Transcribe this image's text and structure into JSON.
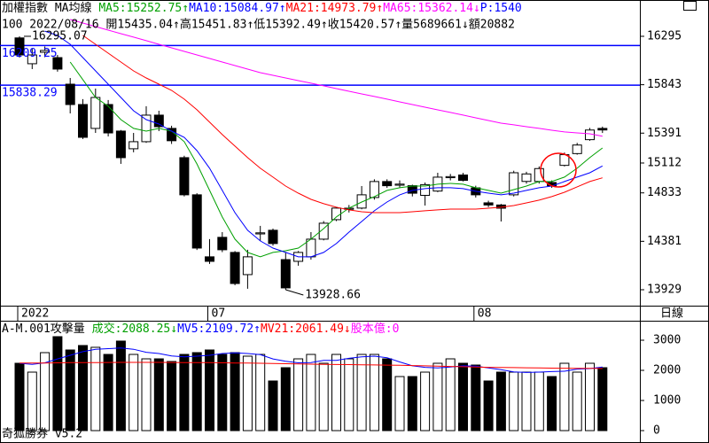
{
  "chart_data": [
    {
      "type": "candlestick",
      "title": "加權指數 MA均線",
      "info": "100 2022/08/16 開15435.04↑高15451.83↑低15392.49↑收15420.57↑量5689661↓額20882",
      "extra_label": "P:1540",
      "extra_color": "#0000ff",
      "period_label": "日線",
      "categories": [
        "2022",
        null,
        null,
        null,
        null,
        null,
        null,
        null,
        null,
        null,
        null,
        null,
        null,
        null,
        null,
        "07",
        null,
        null,
        null,
        null,
        null,
        null,
        null,
        null,
        null,
        null,
        null,
        null,
        null,
        null,
        null,
        null,
        null,
        null,
        null,
        null,
        "08",
        null,
        null,
        null,
        null,
        null,
        null,
        null,
        null,
        null,
        null
      ],
      "open": [
        16280,
        16039,
        16146,
        16096,
        15848,
        15658,
        15435,
        15658,
        15410,
        15245,
        15311,
        15559,
        15435,
        15162,
        14815,
        14236,
        14418,
        14277,
        14070,
        14450,
        14484,
        14210,
        14194,
        14236,
        14401,
        14583,
        14680,
        14691,
        14790,
        14939,
        14905,
        14900,
        14810,
        14850,
        14975,
        15000,
        14880,
        14740,
        14720,
        14815,
        14940,
        14940,
        14930,
        15090,
        15200,
        15330,
        15435.04
      ],
      "high": [
        16295.07,
        16179,
        16200,
        16121,
        15906,
        15708,
        15807,
        15700,
        15420,
        15393,
        15642,
        15600,
        15460,
        15180,
        14830,
        14401,
        14467,
        14290,
        14302,
        14525,
        14500,
        14277,
        14290,
        14467,
        14570,
        14700,
        14720,
        14897,
        14960,
        14960,
        14950,
        14910,
        14930,
        15021,
        15010,
        15020,
        14900,
        14760,
        14730,
        15040,
        15030,
        15080,
        14950,
        15210,
        15300,
        15440,
        15451.83
      ],
      "low": [
        16096,
        15989,
        16100,
        15965,
        15575,
        15336,
        15393,
        15360,
        15104,
        15212,
        15300,
        15410,
        15290,
        14800,
        14300,
        14170,
        14280,
        13971,
        13938,
        14385,
        14340,
        13928.66,
        14153,
        14210,
        14390,
        14570,
        14650,
        14680,
        14770,
        14880,
        14880,
        14800,
        14715,
        14840,
        14950,
        14940,
        14790,
        14700,
        14566,
        14800,
        14920,
        14920,
        14880,
        15080,
        15190,
        15320,
        15392.49
      ],
      "close": [
        16121,
        16121,
        16163,
        15989,
        15658,
        15352,
        15724,
        15393,
        15162,
        15311,
        15559,
        15451,
        15320,
        14815,
        14318,
        14194,
        14302,
        13987,
        14236,
        14460,
        14360,
        13946,
        14277,
        14401,
        14550,
        14691,
        14690,
        14815,
        14939,
        14900,
        14915,
        14830,
        14910,
        14980,
        14985,
        14950,
        14815,
        14720,
        14690,
        15021,
        15010,
        15060,
        14900,
        15190,
        15280,
        15420,
        15420.57
      ],
      "up_color": "#ffffff",
      "down_color": "#000000",
      "series": [
        {
          "name": "MA5:15252.75↑",
          "color": "#00a000",
          "values": [
            null,
            null,
            null,
            null,
            16055,
            15890,
            15724,
            15642,
            15517,
            15435,
            15410,
            15435,
            15410,
            15311,
            15104,
            14856,
            14608,
            14401,
            14277,
            14236,
            14277,
            14293,
            14318,
            14401,
            14500,
            14608,
            14691,
            14748,
            14798,
            14856,
            14881,
            14897,
            14897,
            14914,
            14922,
            14914,
            14881,
            14856,
            14831,
            14864,
            14897,
            14939,
            14939,
            14980,
            15063,
            15162,
            15252.75
          ]
        },
        {
          "name": "MA10:15084.97↑",
          "color": "#0000ff",
          "values": [
            null,
            null,
            16344,
            16303,
            16220,
            16096,
            15972,
            15848,
            15724,
            15600,
            15517,
            15476,
            15410,
            15352,
            15228,
            15063,
            14856,
            14649,
            14484,
            14385,
            14318,
            14277,
            14236,
            14236,
            14277,
            14360,
            14467,
            14566,
            14666,
            14748,
            14815,
            14856,
            14873,
            14881,
            14881,
            14873,
            14848,
            14831,
            14815,
            14831,
            14856,
            14881,
            14897,
            14939,
            14980,
            15021,
            15084.97
          ]
        },
        {
          "name": "MA21:14973.79↑",
          "color": "#ff0000",
          "values": [
            null,
            null,
            null,
            null,
            null,
            16303,
            16220,
            16138,
            16055,
            15972,
            15906,
            15848,
            15790,
            15708,
            15609,
            15493,
            15377,
            15270,
            15162,
            15063,
            14980,
            14897,
            14831,
            14773,
            14732,
            14699,
            14674,
            14657,
            14649,
            14649,
            14649,
            14657,
            14666,
            14674,
            14682,
            14682,
            14682,
            14690,
            14699,
            14715,
            14740,
            14765,
            14798,
            14839,
            14889,
            14939,
            14973.79
          ]
        },
        {
          "name": "MA65:15362.14↓",
          "color": "#ff00ff",
          "values": [
            null,
            null,
            null,
            null,
            16452,
            16419,
            16386,
            16353,
            16320,
            16287,
            16254,
            16220,
            16187,
            16154,
            16121,
            16088,
            16055,
            16022,
            15989,
            15956,
            15931,
            15906,
            15881,
            15857,
            15832,
            15807,
            15782,
            15757,
            15733,
            15708,
            15683,
            15658,
            15633,
            15608,
            15584,
            15559,
            15534,
            15509,
            15484,
            15468,
            15451,
            15435,
            15418,
            15402,
            15393,
            15385,
            15362.14
          ]
        }
      ],
      "ylim": [
        13780,
        16452
      ],
      "yticks": [
        13929,
        14381,
        14833,
        15112,
        15391,
        15843,
        16295
      ],
      "hlines": [
        16209.25,
        15838.29
      ],
      "hline_color": "#0000ff",
      "max_label": 16295.07,
      "min_label": 13928.66
    },
    {
      "type": "bar",
      "title": "A-M.001攻擊量",
      "name": "成交:2088.25↓",
      "name_color": "#00a000",
      "values": [
        2235,
        1941,
        2588,
        3118,
        2676,
        2824,
        2765,
        2529,
        2971,
        2529,
        2382,
        2382,
        2294,
        2529,
        2588,
        2676,
        2529,
        2588,
        2471,
        2529,
        1647,
        2088,
        2382,
        2529,
        2235,
        2529,
        2382,
        2529,
        2529,
        2382,
        1794,
        1794,
        1941,
        2235,
        2382,
        2235,
        2176,
        1647,
        1941,
        1941,
        1941,
        1941,
        1794,
        2235,
        1941,
        2235,
        2088.25
      ],
      "series": [
        {
          "name": "MV5:2109.72↑",
          "color": "#0000ff",
          "values": [
            2235,
            2200,
            2250,
            2380,
            2500,
            2620,
            2700,
            2720,
            2740,
            2700,
            2600,
            2560,
            2480,
            2450,
            2470,
            2500,
            2560,
            2580,
            2560,
            2520,
            2380,
            2300,
            2250,
            2260,
            2330,
            2330,
            2400,
            2450,
            2470,
            2420,
            2280,
            2150,
            2100,
            2080,
            2110,
            2150,
            2140,
            2080,
            2020,
            1950,
            1930,
            1940,
            1960,
            1970,
            2040,
            2060,
            2109.72
          ]
        },
        {
          "name": "MV21:2061.49↓",
          "color": "#ff0000",
          "values": [
            2240,
            2240,
            2245,
            2250,
            2255,
            2260,
            2260,
            2262,
            2265,
            2265,
            2265,
            2265,
            2262,
            2260,
            2258,
            2255,
            2250,
            2245,
            2240,
            2235,
            2230,
            2220,
            2212,
            2205,
            2200,
            2195,
            2190,
            2185,
            2180,
            2175,
            2170,
            2160,
            2150,
            2140,
            2130,
            2120,
            2110,
            2100,
            2095,
            2090,
            2085,
            2080,
            2075,
            2070,
            2068,
            2065,
            2061.49
          ]
        }
      ],
      "extra_label": "股本億:0",
      "extra_color": "#ff00ff",
      "ylim": [
        -176,
        3588
      ],
      "yticks": [
        0,
        1000,
        2000,
        3000
      ]
    }
  ],
  "footer": "奇狐勝券 v5.2"
}
